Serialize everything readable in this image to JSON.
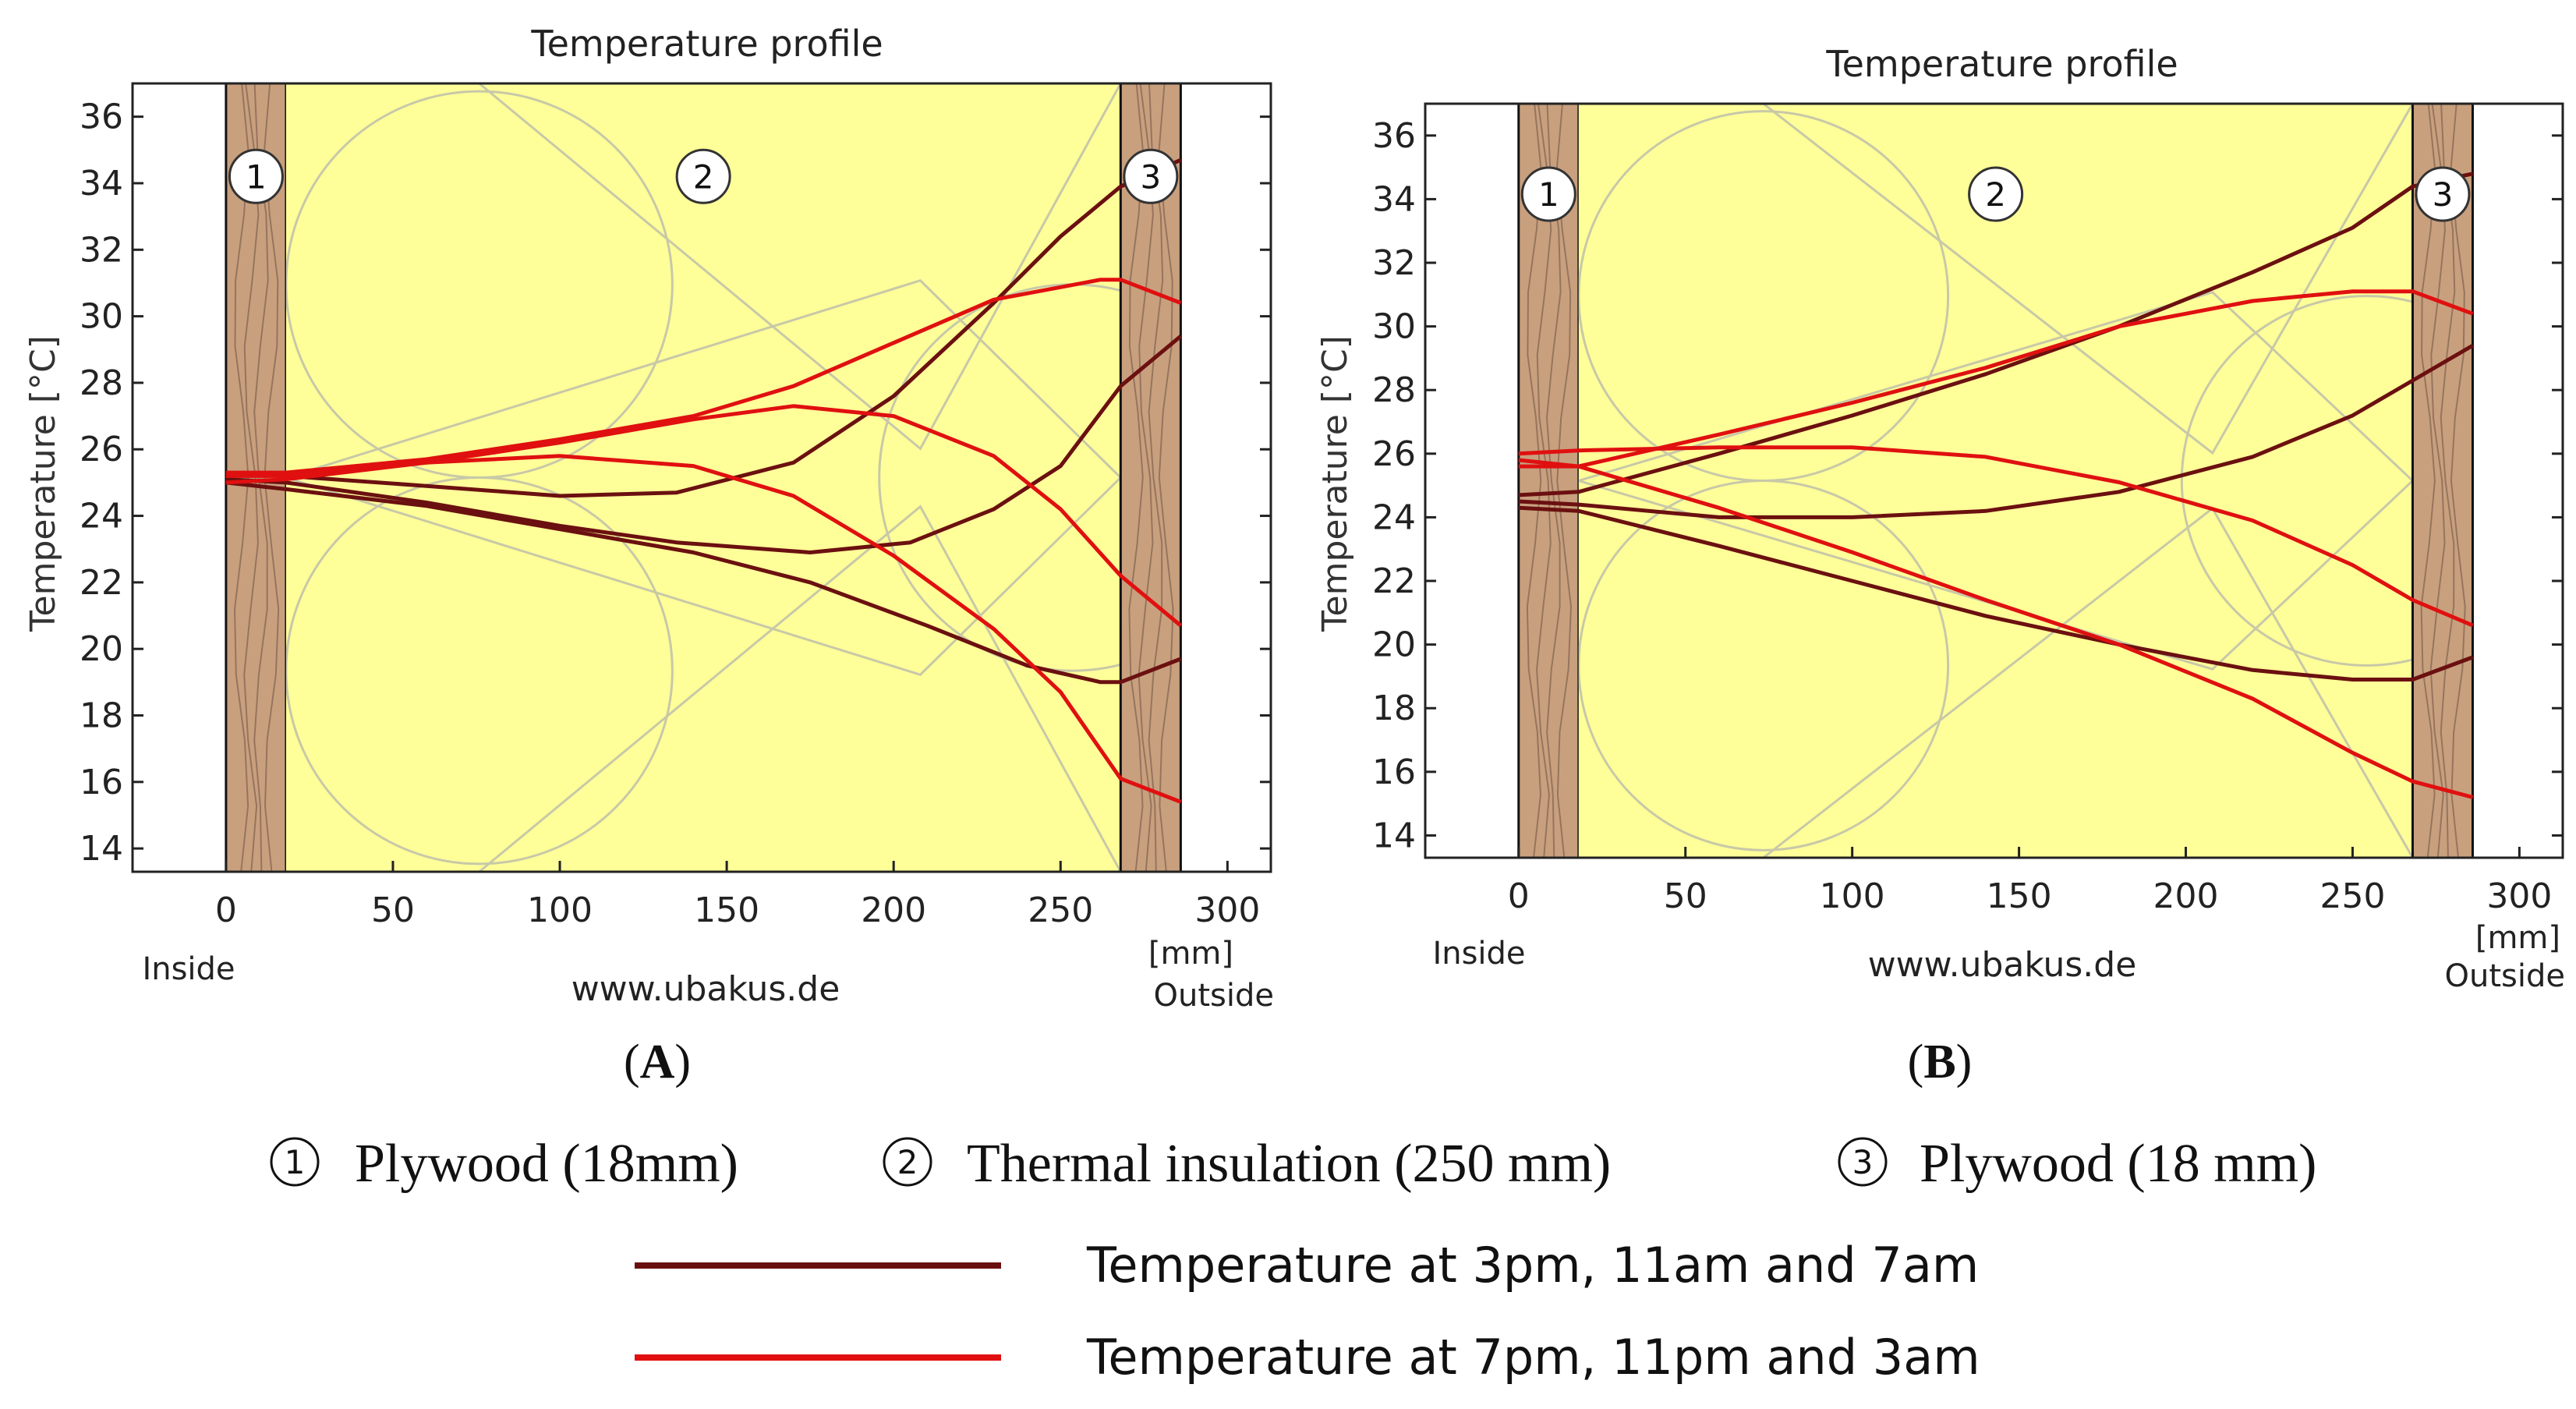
{
  "colors": {
    "series_dark": "#6b1010",
    "series_red": "#e01010",
    "insulation": "#ffff99",
    "plywood": "#c8a07e",
    "grain": "#8a6a55",
    "pattern": "#c8c8a8",
    "axis": "#222222"
  },
  "caption": {
    "items": [
      "Plywood (18mm)",
      "Thermal insulation (250 mm)",
      "Plywood (18 mm)"
    ],
    "markers": [
      "1",
      "2",
      "3"
    ]
  },
  "legend": {
    "entries": [
      {
        "label": "Temperature at 3pm, 11am and 7am",
        "color": "#6b1010"
      },
      {
        "label": "Temperature at 7pm, 11pm and 3am",
        "color": "#e01010"
      }
    ]
  },
  "chart_data": [
    {
      "type": "line",
      "panel_label": "A",
      "title": "Temperature profile",
      "ylabel": "Temperature  [°C]",
      "x_unit": "[mm]",
      "inside_label": "Inside",
      "outside_label": "Outside",
      "source_label": "www.ubakus.de",
      "xlim": [
        -28,
        313
      ],
      "ylim": [
        13.3,
        37
      ],
      "xticks": [
        0,
        50,
        100,
        150,
        200,
        250,
        300
      ],
      "yticks": [
        14,
        16,
        18,
        20,
        22,
        24,
        26,
        28,
        30,
        32,
        34,
        36
      ],
      "layers": [
        {
          "number": "1",
          "name": "Plywood (18mm)",
          "x_start": 0,
          "x_end": 18
        },
        {
          "number": "2",
          "name": "Thermal insulation (250 mm)",
          "x_start": 18,
          "x_end": 268
        },
        {
          "number": "3",
          "name": "Plywood (18 mm)",
          "x_start": 268,
          "x_end": 286
        }
      ],
      "series": [
        {
          "group": "dark",
          "x": [
            0,
            18,
            60,
            100,
            135,
            170,
            200,
            230,
            250,
            268,
            286
          ],
          "y": [
            25.3,
            25.2,
            24.9,
            24.6,
            24.7,
            25.6,
            27.6,
            30.4,
            32.4,
            33.9,
            34.7
          ]
        },
        {
          "group": "dark",
          "x": [
            0,
            18,
            60,
            100,
            135,
            175,
            205,
            230,
            250,
            268,
            286
          ],
          "y": [
            25.1,
            25.0,
            24.4,
            23.7,
            23.2,
            22.9,
            23.2,
            24.2,
            25.5,
            27.9,
            29.4
          ]
        },
        {
          "group": "dark",
          "x": [
            0,
            18,
            60,
            100,
            140,
            175,
            210,
            240,
            262,
            268,
            286
          ],
          "y": [
            25.0,
            24.8,
            24.3,
            23.6,
            22.9,
            22.0,
            20.7,
            19.5,
            19.0,
            19.0,
            19.7
          ]
        },
        {
          "group": "red",
          "x": [
            0,
            18,
            60,
            100,
            140,
            170,
            200,
            230,
            262,
            268,
            286
          ],
          "y": [
            25.3,
            25.3,
            25.7,
            26.3,
            27.0,
            27.9,
            29.2,
            30.5,
            31.1,
            31.1,
            30.4
          ]
        },
        {
          "group": "red",
          "x": [
            0,
            18,
            60,
            100,
            140,
            170,
            200,
            230,
            250,
            268,
            286
          ],
          "y": [
            25.2,
            25.2,
            25.6,
            26.2,
            26.9,
            27.3,
            27.0,
            25.8,
            24.2,
            22.2,
            20.7
          ]
        },
        {
          "group": "red",
          "x": [
            0,
            18,
            60,
            100,
            140,
            170,
            200,
            230,
            250,
            268,
            286
          ],
          "y": [
            25.0,
            25.1,
            25.6,
            25.8,
            25.5,
            24.6,
            22.8,
            20.6,
            18.7,
            16.1,
            15.4
          ]
        }
      ]
    },
    {
      "type": "line",
      "panel_label": "B",
      "title": "Temperature profile",
      "ylabel": "Temperature  [°C]",
      "x_unit": "[mm]",
      "inside_label": "Inside",
      "outside_label": "Outside",
      "source_label": "www.ubakus.de",
      "xlim": [
        -28,
        313
      ],
      "ylim": [
        13.3,
        37
      ],
      "xticks": [
        0,
        50,
        100,
        150,
        200,
        250,
        300
      ],
      "yticks": [
        14,
        16,
        18,
        20,
        22,
        24,
        26,
        28,
        30,
        32,
        34,
        36
      ],
      "layers": [
        {
          "number": "1",
          "name": "Plywood (18mm)",
          "x_start": 0,
          "x_end": 18
        },
        {
          "number": "2",
          "name": "Thermal insulation (250 mm)",
          "x_start": 18,
          "x_end": 268
        },
        {
          "number": "3",
          "name": "Plywood (18 mm)",
          "x_start": 268,
          "x_end": 286
        }
      ],
      "series": [
        {
          "group": "dark",
          "x": [
            0,
            18,
            60,
            100,
            140,
            180,
            220,
            250,
            268,
            286
          ],
          "y": [
            24.7,
            24.8,
            26.0,
            27.2,
            28.5,
            30.0,
            31.7,
            33.1,
            34.4,
            34.8
          ]
        },
        {
          "group": "dark",
          "x": [
            0,
            18,
            60,
            100,
            140,
            180,
            220,
            250,
            268,
            286
          ],
          "y": [
            24.5,
            24.4,
            24.0,
            24.0,
            24.2,
            24.8,
            25.9,
            27.2,
            28.3,
            29.4
          ]
        },
        {
          "group": "dark",
          "x": [
            0,
            18,
            60,
            100,
            140,
            180,
            220,
            250,
            268,
            286
          ],
          "y": [
            24.3,
            24.2,
            23.1,
            22.0,
            20.9,
            20.0,
            19.2,
            18.9,
            18.9,
            19.6
          ]
        },
        {
          "group": "red",
          "x": [
            0,
            18,
            60,
            100,
            140,
            180,
            220,
            250,
            268,
            286
          ],
          "y": [
            25.6,
            25.6,
            26.6,
            27.6,
            28.7,
            30.0,
            30.8,
            31.1,
            31.1,
            30.4
          ]
        },
        {
          "group": "red",
          "x": [
            0,
            18,
            60,
            100,
            140,
            180,
            220,
            250,
            268,
            286
          ],
          "y": [
            26.0,
            26.1,
            26.2,
            26.2,
            25.9,
            25.1,
            23.9,
            22.5,
            21.4,
            20.6
          ]
        },
        {
          "group": "red",
          "x": [
            0,
            18,
            60,
            100,
            140,
            180,
            220,
            250,
            268,
            286
          ],
          "y": [
            25.8,
            25.6,
            24.3,
            22.9,
            21.4,
            20.0,
            18.3,
            16.6,
            15.7,
            15.2
          ]
        }
      ]
    }
  ]
}
